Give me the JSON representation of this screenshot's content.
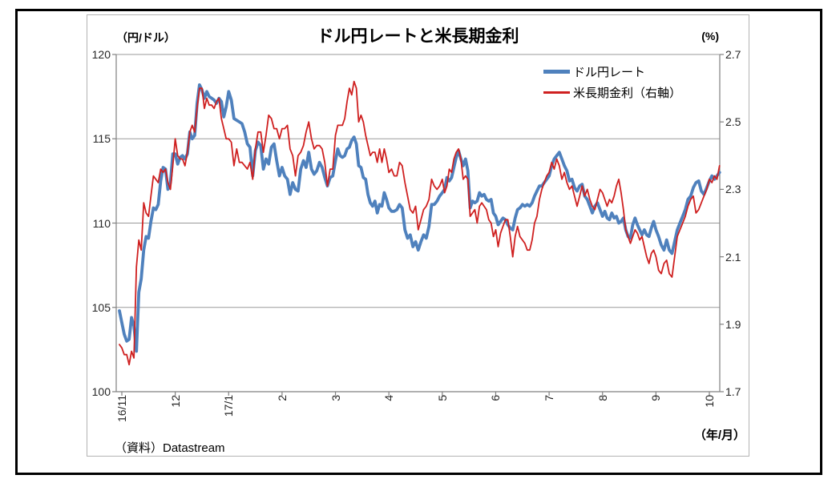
{
  "chart_data": {
    "type": "line",
    "title": "ドル円レートと米長期金利",
    "left_axis": {
      "unit_label": "（円/ドル）",
      "min": 100,
      "max": 120,
      "tick_interval": 5,
      "tick_labels": [
        "120",
        "115",
        "110",
        "105",
        "100"
      ]
    },
    "right_axis": {
      "unit_label": "(%)",
      "min": 1.7,
      "max": 2.7,
      "tick_interval": 0.2,
      "tick_labels": [
        "2.7",
        "2.5",
        "2.3",
        "2.1",
        "1.9",
        "1.7"
      ]
    },
    "x_axis": {
      "unit_label": "（年/月）",
      "tick_labels": [
        "16/11",
        "12",
        "17/1",
        "2",
        "3",
        "4",
        "5",
        "6",
        "7",
        "8",
        "9",
        "10"
      ]
    },
    "source_note": "（資料）Datastream",
    "legend": {
      "items": [
        {
          "label": "ドル円レート"
        },
        {
          "label": "米長期金利（右軸）"
        }
      ]
    },
    "style": {
      "grid_color": "#9a9a9a",
      "axis_color": "#808080",
      "chart_border_color": "#b3b3b3",
      "outer_frame_color": "#000000",
      "background": "#ffffff"
    },
    "month_day_counts": [
      22,
      22,
      20,
      20,
      23,
      20,
      23,
      22,
      21,
      23,
      20,
      21
    ],
    "series": [
      {
        "name": "ドル円レート",
        "axis": "left",
        "color": "#4f81bd",
        "line_width": 3.8,
        "start_point": {
          "t": -0.045,
          "value": 104.8
        },
        "monthly_values": [
          [
            104.1,
            103.4,
            103.0,
            103.1,
            104.4,
            103.9,
            102.4,
            105.9,
            106.7,
            108.4,
            109.2,
            109.1,
            110.1,
            110.9,
            110.8,
            111.1,
            112.5,
            113.3,
            113.2,
            112.0,
            112.4,
            114.1
          ],
          [
            114.1,
            113.5,
            113.9,
            114.0,
            113.8,
            114.1,
            115.4,
            115.0,
            115.2,
            117.1,
            118.2,
            117.9,
            117.4,
            117.8,
            117.5,
            117.4,
            117.3,
            117.1,
            117.4,
            117.2,
            116.3,
            116.9
          ],
          [
            117.8,
            117.3,
            116.2,
            116.1,
            116.0,
            115.9,
            115.4,
            114.7,
            114.5,
            112.8,
            114.3,
            114.8,
            114.6,
            113.2,
            113.8,
            113.5,
            114.5,
            114.7,
            113.7,
            112.8
          ],
          [
            113.3,
            112.8,
            112.6,
            111.7,
            112.4,
            112.0,
            111.9,
            113.2,
            113.7,
            113.3,
            114.2,
            113.2,
            112.9,
            113.1,
            113.6,
            113.3,
            112.7,
            112.2,
            112.7,
            112.8
          ],
          [
            113.7,
            114.4,
            114.0,
            113.9,
            114.0,
            114.4,
            114.5,
            114.9,
            115.1,
            114.7,
            113.4,
            113.3,
            112.7,
            112.6,
            111.7,
            111.2,
            111.0,
            111.3,
            110.6,
            111.1,
            111.0,
            111.8,
            111.4
          ],
          [
            110.9,
            110.7,
            110.7,
            110.8,
            111.1,
            110.9,
            109.6,
            109.1,
            109.3,
            108.6,
            108.9,
            108.4,
            108.9,
            109.3,
            109.1,
            109.8,
            111.1,
            111.1,
            111.3,
            111.6
          ],
          [
            111.8,
            112.0,
            112.7,
            112.5,
            112.7,
            113.3,
            113.9,
            114.3,
            113.8,
            113.4,
            113.8,
            113.1,
            110.9,
            111.3,
            111.2,
            111.3,
            111.8,
            111.6,
            111.7,
            111.4,
            111.3,
            111.4,
            110.6
          ],
          [
            110.4,
            109.9,
            110.1,
            110.3,
            110.2,
            109.9,
            109.7,
            109.6,
            110.3,
            110.8,
            110.9,
            111.1,
            111.0,
            111.1,
            111.0,
            111.2,
            111.6,
            111.9,
            112.2,
            112.2,
            112.4,
            112.6
          ],
          [
            112.8,
            113.4,
            113.8,
            114.0,
            114.2,
            113.8,
            113.4,
            113.1,
            112.5,
            112.6,
            112.1,
            111.9,
            112.2,
            112.3,
            111.6,
            111.4,
            111.0,
            110.6,
            111.0,
            111.2,
            110.8
          ],
          [
            110.4,
            110.7,
            110.3,
            110.2,
            110.6,
            110.3,
            110.4,
            110.0,
            110.1,
            110.3,
            109.6,
            109.2,
            109.1,
            109.9,
            110.3,
            109.9,
            109.6,
            109.3,
            109.6,
            109.3,
            109.2,
            109.7,
            110.1
          ],
          [
            109.6,
            109.2,
            108.7,
            108.4,
            109.0,
            108.4,
            108.2,
            108.9,
            109.6,
            110.0,
            110.4,
            110.8,
            111.4,
            111.6,
            112.1,
            112.4,
            112.5,
            111.9,
            111.7,
            112.1
          ],
          [
            112.5,
            112.8,
            112.6,
            112.8,
            113.0
          ]
        ]
      },
      {
        "name": "米長期金利（右軸）",
        "axis": "right",
        "color": "#cf2020",
        "line_width": 1.8,
        "start_point": {
          "t": -0.045,
          "value": 1.84
        },
        "monthly_values": [
          [
            1.83,
            1.81,
            1.81,
            1.78,
            1.82,
            1.8,
            2.07,
            2.15,
            2.12,
            2.26,
            2.23,
            2.22,
            2.28,
            2.34,
            2.33,
            2.32,
            2.36,
            2.35,
            2.36,
            2.32,
            2.3,
            2.37
          ],
          [
            2.45,
            2.4,
            2.39,
            2.39,
            2.37,
            2.41,
            2.47,
            2.49,
            2.47,
            2.54,
            2.6,
            2.6,
            2.54,
            2.57,
            2.55,
            2.55,
            2.54,
            2.56,
            2.57,
            2.51,
            2.48,
            2.45
          ],
          [
            2.45,
            2.44,
            2.37,
            2.42,
            2.38,
            2.38,
            2.37,
            2.36,
            2.38,
            2.33,
            2.42,
            2.47,
            2.47,
            2.41,
            2.46,
            2.52,
            2.51,
            2.48,
            2.48,
            2.45
          ],
          [
            2.48,
            2.48,
            2.49,
            2.42,
            2.4,
            2.34,
            2.4,
            2.41,
            2.43,
            2.47,
            2.5,
            2.45,
            2.42,
            2.43,
            2.43,
            2.42,
            2.38,
            2.31,
            2.36,
            2.36
          ],
          [
            2.46,
            2.49,
            2.49,
            2.49,
            2.51,
            2.56,
            2.6,
            2.58,
            2.62,
            2.6,
            2.5,
            2.52,
            2.5,
            2.46,
            2.43,
            2.4,
            2.41,
            2.41,
            2.38,
            2.42,
            2.38,
            2.42,
            2.39
          ],
          [
            2.35,
            2.36,
            2.34,
            2.34,
            2.38,
            2.37,
            2.32,
            2.28,
            2.24,
            2.23,
            2.25,
            2.18,
            2.21,
            2.24,
            2.25,
            2.27,
            2.33,
            2.31,
            2.3,
            2.31
          ],
          [
            2.33,
            2.29,
            2.31,
            2.36,
            2.35,
            2.39,
            2.41,
            2.42,
            2.39,
            2.33,
            2.34,
            2.33,
            2.22,
            2.23,
            2.24,
            2.2,
            2.25,
            2.26,
            2.25,
            2.24,
            2.21,
            2.2,
            2.16
          ],
          [
            2.18,
            2.13,
            2.17,
            2.19,
            2.21,
            2.21,
            2.16,
            2.1,
            2.16,
            2.19,
            2.16,
            2.15,
            2.14,
            2.12,
            2.12,
            2.15,
            2.2,
            2.22,
            2.27,
            2.3,
            2.32,
            2.34
          ],
          [
            2.35,
            2.38,
            2.36,
            2.39,
            2.37,
            2.33,
            2.35,
            2.32,
            2.3,
            2.31,
            2.28,
            2.25,
            2.28,
            2.31,
            2.28,
            2.3,
            2.27,
            2.25,
            2.24,
            2.27,
            2.3
          ],
          [
            2.29,
            2.27,
            2.25,
            2.27,
            2.26,
            2.28,
            2.31,
            2.33,
            2.29,
            2.24,
            2.18,
            2.16,
            2.14,
            2.16,
            2.18,
            2.17,
            2.15,
            2.16,
            2.13,
            2.1,
            2.08,
            2.11,
            2.12
          ],
          [
            2.1,
            2.06,
            2.05,
            2.08,
            2.09,
            2.05,
            2.04,
            2.1,
            2.16,
            2.18,
            2.2,
            2.22,
            2.25,
            2.27,
            2.28,
            2.23,
            2.24,
            2.26,
            2.28,
            2.3
          ],
          [
            2.33,
            2.32,
            2.34,
            2.33,
            2.37
          ]
        ]
      }
    ]
  }
}
